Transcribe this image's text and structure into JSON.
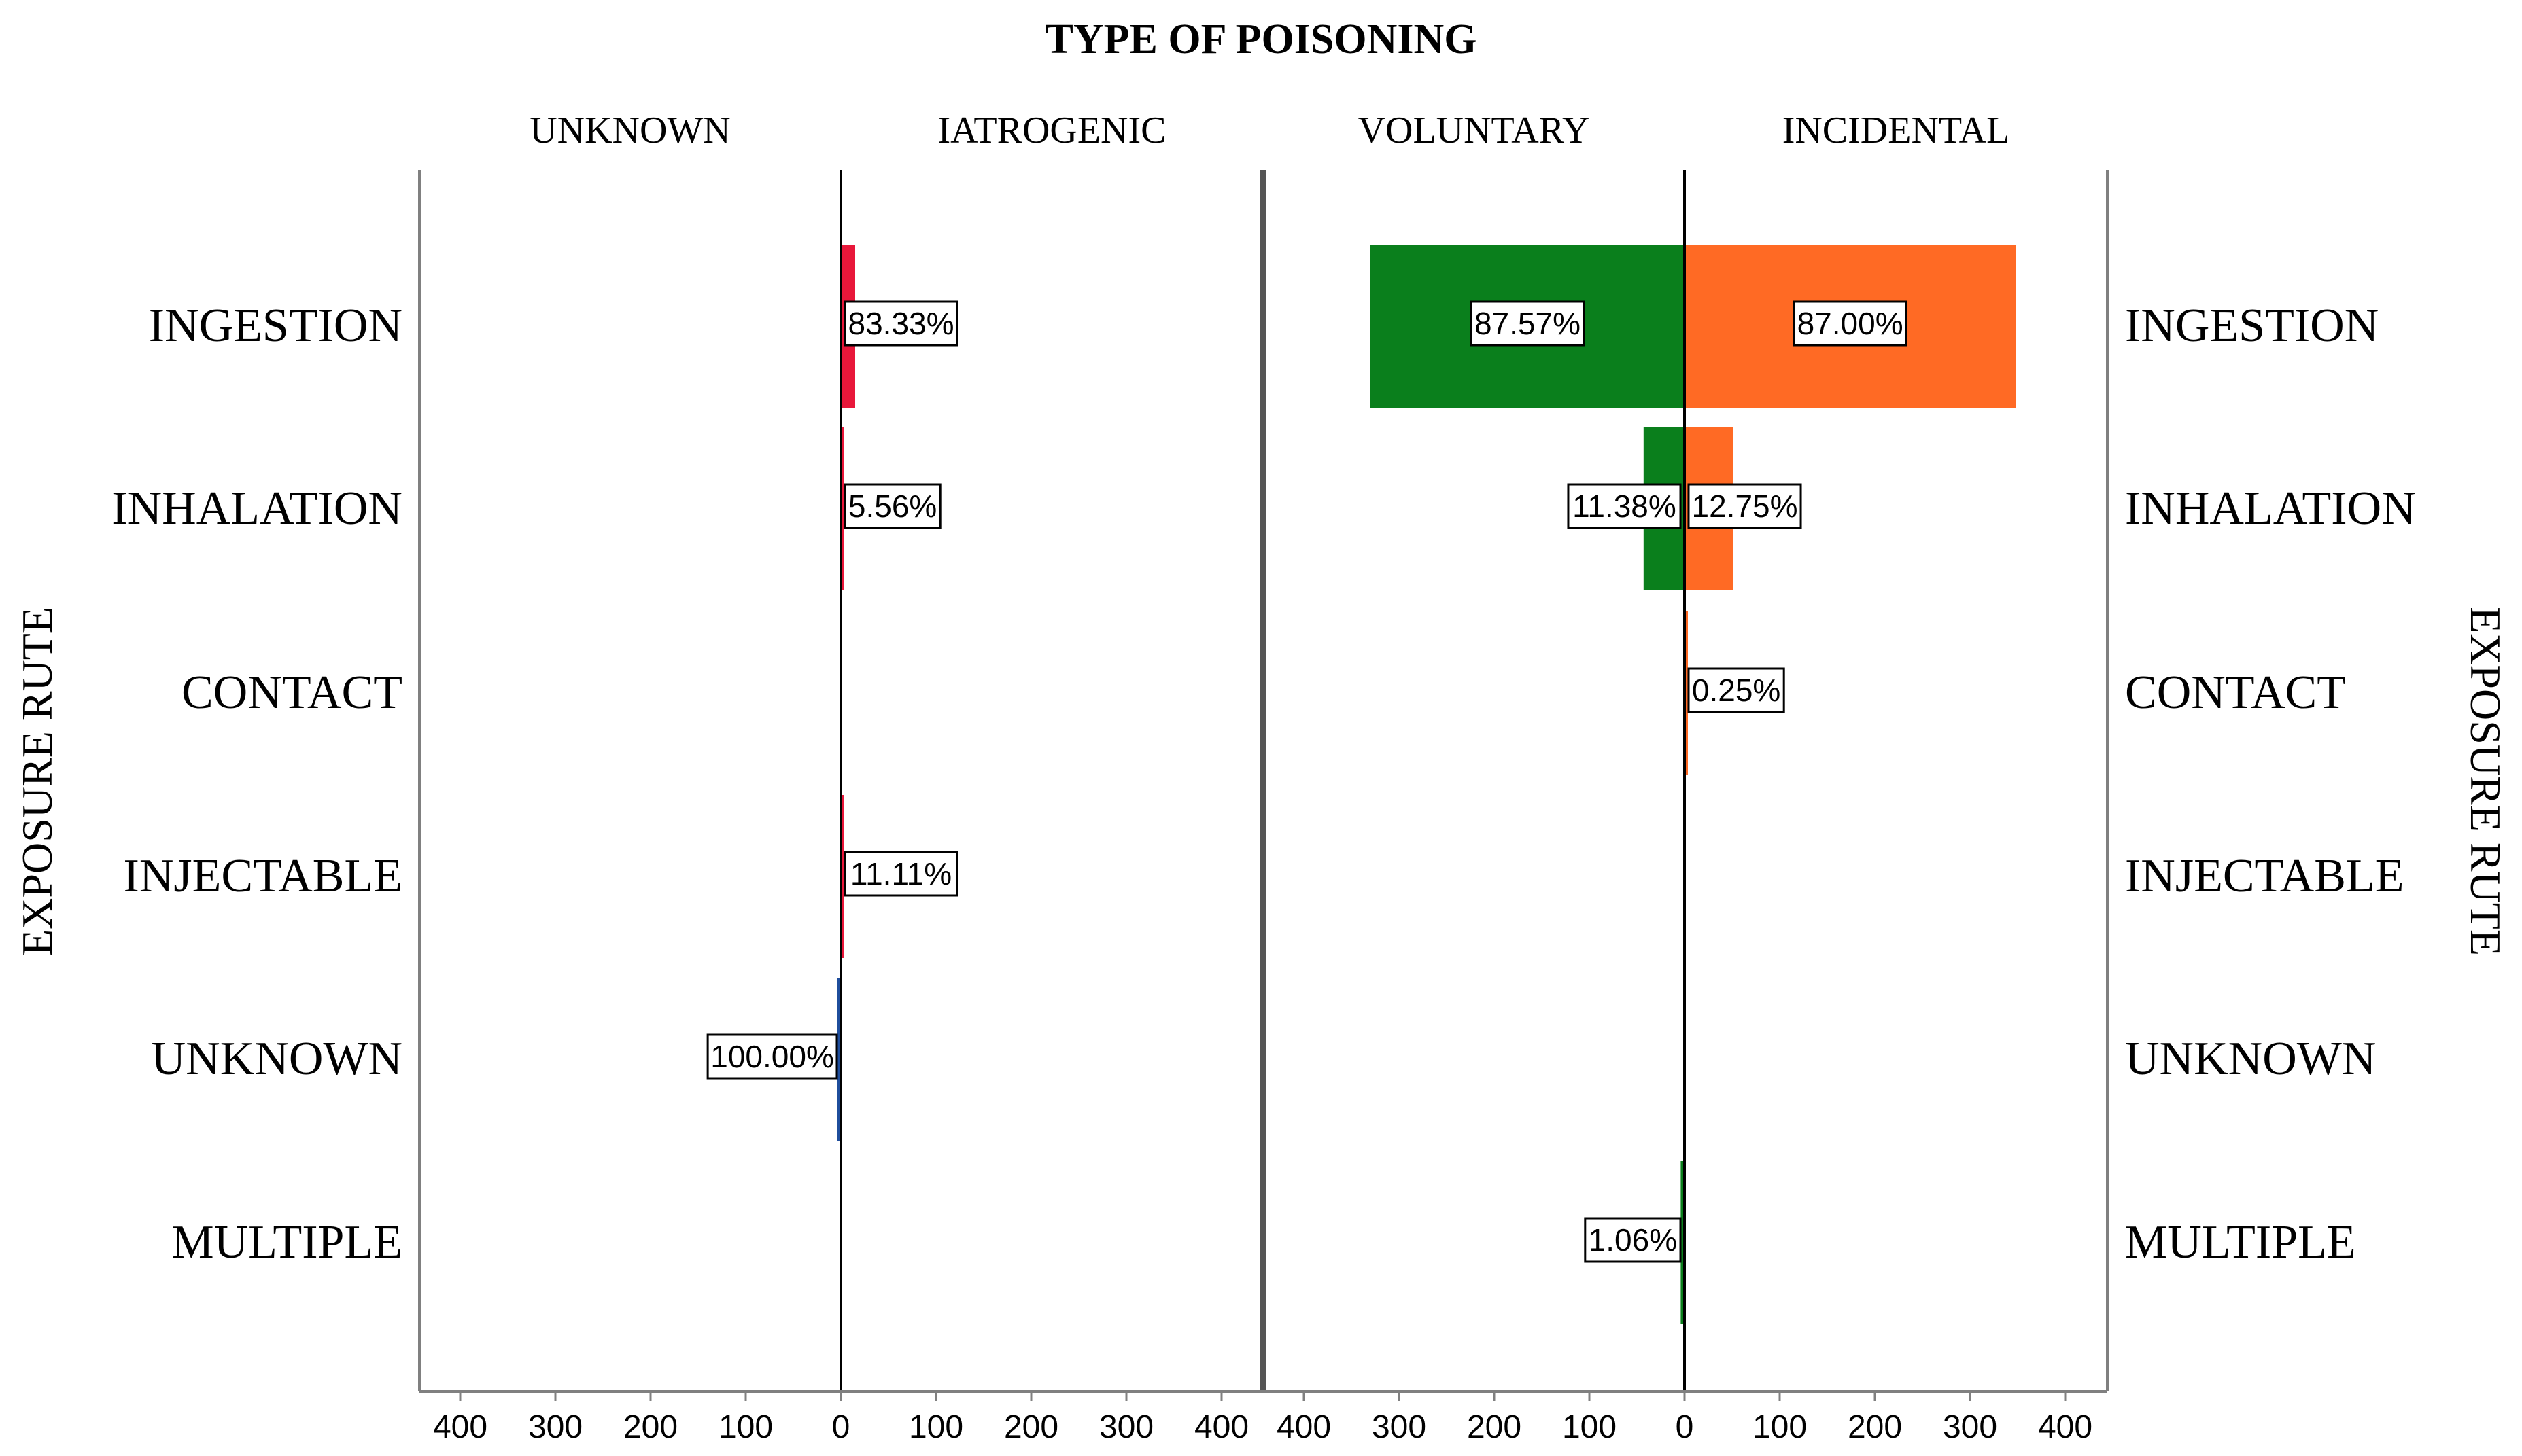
{
  "chart_data": {
    "type": "bar",
    "orientation": "horizontal",
    "layout": "back-to-back pyramid pairs",
    "title": "TYPE OF POISONING",
    "ylabel_left": "EXPOSURE RUTE",
    "ylabel_right": "EXPOSURE RUTE",
    "categories": [
      "INGESTION",
      "INHALATION",
      "CONTACT",
      "INJECTABLE",
      "UNKNOWN",
      "MULTIPLE"
    ],
    "x_ticks": [
      "400",
      "300",
      "200",
      "100",
      "0",
      "100",
      "200",
      "300",
      "400"
    ],
    "xlim": [
      -450,
      450
    ],
    "grid": true,
    "panels": [
      {
        "series": [
          {
            "name": "UNKNOWN",
            "side": "left",
            "color": "#1f4e9c",
            "values": [
              0,
              0,
              0,
              0,
              1,
              0
            ],
            "labels": [
              "",
              "",
              "",
              "",
              "100.00%",
              ""
            ]
          },
          {
            "name": "IATROGENIC",
            "side": "right",
            "color": "#e8173a",
            "values": [
              15,
              1,
              0,
              2,
              0,
              0
            ],
            "labels": [
              "83.33%",
              "5.56%",
              "",
              "11.11%",
              "",
              ""
            ]
          }
        ]
      },
      {
        "series": [
          {
            "name": "VOLUNTARY",
            "side": "left",
            "color": "#0a7f1c",
            "values": [
              330,
              43,
              0,
              0,
              0,
              4
            ],
            "labels": [
              "87.57%",
              "11.38%",
              "",
              "",
              "",
              "1.06%"
            ]
          },
          {
            "name": "INCIDENTAL",
            "side": "right",
            "color": "#ff6a24",
            "values": [
              348,
              51,
              1,
              0,
              0,
              0
            ],
            "labels": [
              "87.00%",
              "12.75%",
              "0.25%",
              "",
              "",
              ""
            ]
          }
        ]
      }
    ]
  }
}
